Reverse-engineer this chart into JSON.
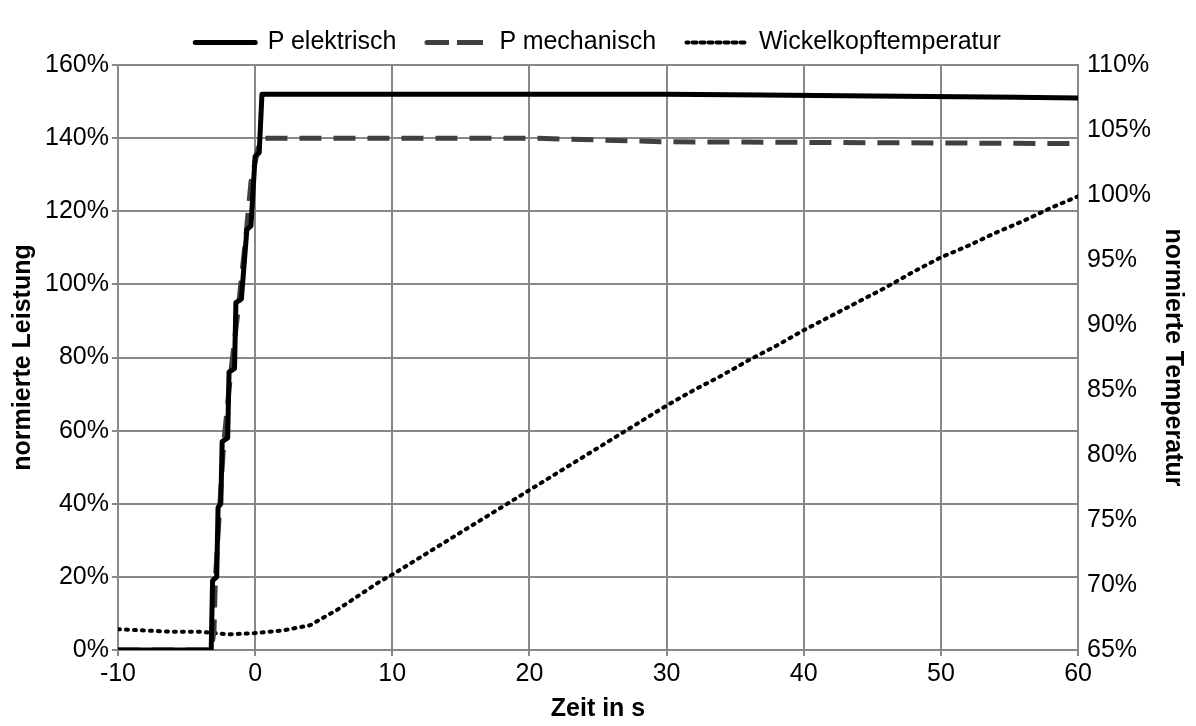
{
  "chart_data": {
    "type": "line",
    "xlabel": "Zeit in s",
    "ylabel": "normierte Leistung",
    "y2label": "normierte Temperatur",
    "xlim": [
      -10,
      60
    ],
    "xticks": [
      -10,
      0,
      10,
      20,
      30,
      40,
      50,
      60
    ],
    "ylim": [
      0,
      160
    ],
    "yticks": [
      {
        "value": 0,
        "label": "0%"
      },
      {
        "value": 20,
        "label": "20%"
      },
      {
        "value": 40,
        "label": "40%"
      },
      {
        "value": 60,
        "label": "60%"
      },
      {
        "value": 80,
        "label": "80%"
      },
      {
        "value": 100,
        "label": "100%"
      },
      {
        "value": 120,
        "label": "120%"
      },
      {
        "value": 140,
        "label": "140%"
      },
      {
        "value": 160,
        "label": "160%"
      }
    ],
    "y2lim": [
      65,
      110
    ],
    "y2ticks": [
      {
        "value": 65,
        "label": "65%"
      },
      {
        "value": 70,
        "label": "70%"
      },
      {
        "value": 75,
        "label": "75%"
      },
      {
        "value": 80,
        "label": "80%"
      },
      {
        "value": 85,
        "label": "85%"
      },
      {
        "value": 90,
        "label": "90%"
      },
      {
        "value": 95,
        "label": "95%"
      },
      {
        "value": 100,
        "label": "100%"
      },
      {
        "value": 105,
        "label": "105%"
      },
      {
        "value": 110,
        "label": "110%"
      }
    ],
    "grid": true,
    "legend": "top",
    "marker": "none",
    "series": [
      {
        "name": "P elektrisch",
        "color": "#000000",
        "line_style": "solid",
        "x": [
          -10,
          -3.2,
          -3.1,
          -2.8,
          -2.7,
          -2.5,
          -2.4,
          -2.0,
          -1.9,
          -1.5,
          -1.4,
          -1.0,
          -0.6,
          -0.3,
          0,
          0.3,
          0.5,
          10,
          30,
          45,
          60
        ],
        "values": [
          0,
          0,
          19,
          20,
          39,
          40,
          57,
          58,
          76,
          77,
          95,
          96,
          115,
          116,
          135,
          136,
          152,
          152,
          152,
          151.5,
          151
        ]
      },
      {
        "name": "P mechanisch",
        "color": "#404040",
        "line_style": "dashed",
        "x": [
          -10,
          -3.2,
          -3.0,
          -2.9,
          -2.6,
          -2.3,
          -1.8,
          -1.3,
          -0.7,
          -0.3,
          0.2,
          0.5,
          20,
          30,
          60
        ],
        "values": [
          0,
          0,
          5,
          19,
          38,
          56,
          75,
          91,
          112,
          128,
          137,
          140,
          140,
          139,
          138.5
        ]
      },
      {
        "name": "Wickelkopftemperatur",
        "color": "#000000",
        "line_style": "dotted",
        "axis": "y2",
        "x": [
          -10,
          -8,
          -6,
          -4,
          -2,
          0,
          2,
          4,
          5,
          6,
          7,
          8,
          9,
          10,
          12,
          14,
          16,
          18,
          20,
          22,
          24,
          26,
          28,
          30,
          32,
          34,
          36,
          38,
          40,
          42,
          44,
          46,
          48,
          50,
          52,
          54,
          56,
          58,
          60
        ],
        "values": [
          66.6,
          66.5,
          66.4,
          66.4,
          66.2,
          66.3,
          66.5,
          66.9,
          67.5,
          68.1,
          68.8,
          69.5,
          70.2,
          70.8,
          72.1,
          73.4,
          74.7,
          76.0,
          77.3,
          78.6,
          79.9,
          81.2,
          82.5,
          83.8,
          85.0,
          86.1,
          87.3,
          88.4,
          89.6,
          90.7,
          91.8,
          92.9,
          94.1,
          95.2,
          96.1,
          97.1,
          98.0,
          99.0,
          99.9
        ]
      }
    ]
  }
}
